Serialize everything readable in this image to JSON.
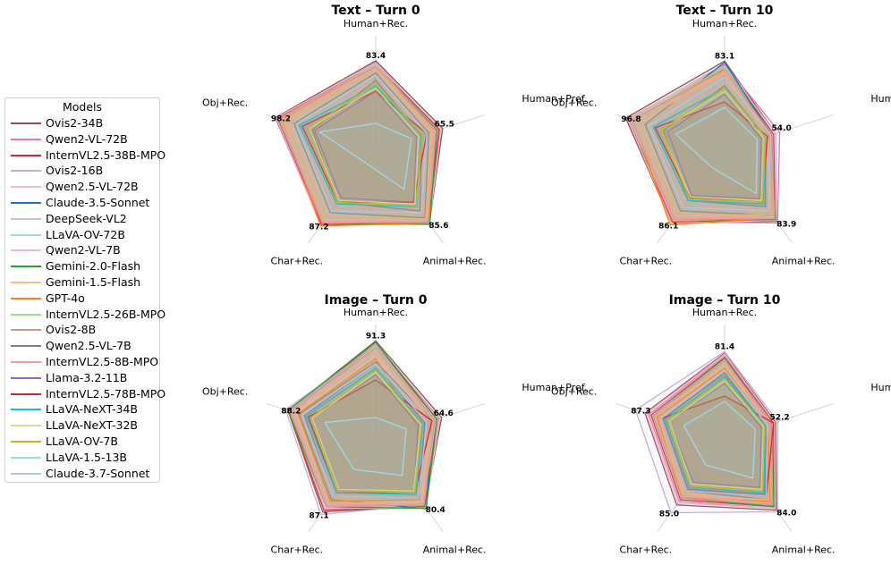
{
  "legend": {
    "title": "Models",
    "models": [
      {
        "name": "Ovis2-34B",
        "color": "#8c564b"
      },
      {
        "name": "Qwen2-VL-72B",
        "color": "#e377c2"
      },
      {
        "name": "InternVL2.5-38B-MPO",
        "color": "#d62728"
      },
      {
        "name": "Ovis2-16B",
        "color": "#c5b0d5"
      },
      {
        "name": "Qwen2.5-VL-72B",
        "color": "#f7b6d2"
      },
      {
        "name": "Claude-3.5-Sonnet",
        "color": "#1f77b4"
      },
      {
        "name": "DeepSeek-VL2",
        "color": "#c7c7c7"
      },
      {
        "name": "LLaVA-OV-72B",
        "color": "#9edae5"
      },
      {
        "name": "Qwen2-VL-7B",
        "color": "#f7b6d2"
      },
      {
        "name": "Gemini-2.0-Flash",
        "color": "#2ca02c"
      },
      {
        "name": "Gemini-1.5-Flash",
        "color": "#ffbb78"
      },
      {
        "name": "GPT-4o",
        "color": "#ff7f0e"
      },
      {
        "name": "InternVL2.5-26B-MPO",
        "color": "#98df8a"
      },
      {
        "name": "Ovis2-8B",
        "color": "#c49c94"
      },
      {
        "name": "Qwen2.5-VL-7B",
        "color": "#7f7f7f"
      },
      {
        "name": "InternVL2.5-8B-MPO",
        "color": "#ff9896"
      },
      {
        "name": "Llama-3.2-11B",
        "color": "#9467bd"
      },
      {
        "name": "InternVL2.5-78B-MPO",
        "color": "#d62728"
      },
      {
        "name": "LLaVA-NeXT-34B",
        "color": "#17becf"
      },
      {
        "name": "LLaVA-NeXT-32B",
        "color": "#dbdb8d"
      },
      {
        "name": "LLaVA-OV-7B",
        "color": "#bcbd22"
      },
      {
        "name": "LLaVA-1.5-13B",
        "color": "#9edae5"
      },
      {
        "name": "Claude-3.7-Sonnet",
        "color": "#aec7e8"
      }
    ]
  },
  "chart_data": [
    {
      "type": "radar",
      "title": "Text – Turn 0",
      "axes": [
        "Human+Rec.",
        "Human+Pref.",
        "Animal+Rec.",
        "Char+Rec.",
        "Obj+Rec."
      ],
      "rmax": 100,
      "max_labels": [
        "83.4",
        "65.5",
        "85.6",
        "87.2",
        "98.2"
      ],
      "series": [
        {
          "name": "Ovis2-34B",
          "values": [
            83.4,
            65.5,
            85.0,
            86.5,
            98.2
          ]
        },
        {
          "name": "Qwen2-VL-72B",
          "values": [
            82.0,
            63.0,
            84.0,
            85.0,
            96.0
          ]
        },
        {
          "name": "InternVL2.5-38B-MPO",
          "values": [
            80.5,
            62.0,
            84.0,
            86.0,
            97.0
          ]
        },
        {
          "name": "Ovis2-16B",
          "values": [
            80.0,
            60.0,
            82.0,
            84.0,
            94.0
          ]
        },
        {
          "name": "Qwen2.5-VL-72B",
          "values": [
            81.0,
            64.0,
            85.0,
            87.0,
            97.5
          ]
        },
        {
          "name": "Claude-3.5-Sonnet",
          "values": [
            72.0,
            52.0,
            78.0,
            72.0,
            80.0
          ]
        },
        {
          "name": "DeepSeek-VL2",
          "values": [
            75.0,
            55.0,
            80.0,
            78.0,
            88.0
          ]
        },
        {
          "name": "LLaVA-OV-72B",
          "values": [
            78.0,
            58.0,
            82.0,
            82.0,
            92.0
          ]
        },
        {
          "name": "Qwen2-VL-7B",
          "values": [
            77.0,
            57.0,
            80.0,
            80.0,
            90.0
          ]
        },
        {
          "name": "Gemini-2.0-Flash",
          "values": [
            79.0,
            60.0,
            85.6,
            84.0,
            93.0
          ]
        },
        {
          "name": "Gemini-1.5-Flash",
          "values": [
            76.0,
            55.0,
            79.0,
            80.0,
            90.0
          ]
        },
        {
          "name": "GPT-4o",
          "values": [
            78.0,
            58.0,
            84.0,
            87.2,
            92.0
          ]
        },
        {
          "name": "InternVL2.5-26B-MPO",
          "values": [
            79.0,
            59.0,
            82.0,
            84.0,
            94.0
          ]
        },
        {
          "name": "Ovis2-8B",
          "values": [
            78.0,
            59.0,
            83.0,
            84.0,
            95.0
          ]
        },
        {
          "name": "Qwen2.5-VL-7B",
          "values": [
            65.0,
            45.0,
            70.0,
            60.0,
            62.0
          ]
        },
        {
          "name": "InternVL2.5-8B-MPO",
          "values": [
            77.0,
            58.0,
            82.0,
            83.0,
            93.0
          ]
        },
        {
          "name": "Llama-3.2-11B",
          "values": [
            55.0,
            40.0,
            60.0,
            55.0,
            60.0
          ]
        },
        {
          "name": "InternVL2.5-78B-MPO",
          "values": [
            55.0,
            50.0,
            60.0,
            60.0,
            72.0
          ]
        },
        {
          "name": "LLaVA-NeXT-34B",
          "values": [
            60.0,
            45.0,
            65.0,
            62.0,
            75.0
          ]
        },
        {
          "name": "LLaVA-NeXT-32B",
          "values": [
            58.0,
            42.0,
            62.0,
            58.0,
            65.0
          ]
        },
        {
          "name": "LLaVA-OV-7B",
          "values": [
            62.0,
            46.0,
            64.0,
            60.0,
            66.0
          ]
        },
        {
          "name": "LLaVA-1.5-13B",
          "values": [
            25.0,
            35.0,
            45.0,
            15.0,
            55.0
          ]
        },
        {
          "name": "Claude-3.7-Sonnet",
          "values": [
            70.0,
            50.0,
            72.0,
            70.0,
            78.0
          ]
        }
      ]
    },
    {
      "type": "radar",
      "title": "Text – Turn 10",
      "axes": [
        "Human+Rec.",
        "Human+Pref.",
        "Animal+Rec.",
        "Char+Rec.",
        "Obj+Rec."
      ],
      "rmax": 100,
      "max_labels": [
        "83.1",
        "54.0",
        "83.9",
        "86.1",
        "96.8"
      ],
      "series": [
        {
          "name": "Ovis2-34B",
          "values": [
            83.1,
            50.0,
            82.0,
            84.0,
            96.8
          ]
        },
        {
          "name": "Qwen2-VL-72B",
          "values": [
            80.0,
            54.0,
            83.9,
            82.0,
            94.0
          ]
        },
        {
          "name": "InternVL2.5-38B-MPO",
          "values": [
            79.0,
            48.0,
            80.0,
            83.0,
            95.0
          ]
        },
        {
          "name": "Ovis2-16B",
          "values": [
            78.0,
            47.0,
            79.0,
            80.0,
            92.0
          ]
        },
        {
          "name": "Qwen2.5-VL-72B",
          "values": [
            79.0,
            50.0,
            81.0,
            84.0,
            95.0
          ]
        },
        {
          "name": "Claude-3.5-Sonnet",
          "values": [
            82.0,
            46.0,
            75.0,
            70.0,
            78.0
          ]
        },
        {
          "name": "DeepSeek-VL2",
          "values": [
            72.0,
            44.0,
            76.0,
            74.0,
            85.0
          ]
        },
        {
          "name": "LLaVA-OV-72B",
          "values": [
            76.0,
            46.0,
            78.0,
            78.0,
            88.0
          ]
        },
        {
          "name": "Qwen2-VL-7B",
          "values": [
            74.0,
            45.0,
            76.0,
            77.0,
            86.0
          ]
        },
        {
          "name": "Gemini-2.0-Flash",
          "values": [
            77.0,
            46.0,
            80.0,
            80.0,
            90.0
          ]
        },
        {
          "name": "Gemini-1.5-Flash",
          "values": [
            72.0,
            42.0,
            74.0,
            76.0,
            86.0
          ]
        },
        {
          "name": "GPT-4o",
          "values": [
            76.0,
            44.0,
            78.0,
            86.1,
            90.0
          ]
        },
        {
          "name": "InternVL2.5-26B-MPO",
          "values": [
            77.0,
            45.0,
            78.0,
            80.0,
            92.0
          ]
        },
        {
          "name": "Ovis2-8B",
          "values": [
            75.0,
            46.0,
            79.0,
            80.0,
            91.0
          ]
        },
        {
          "name": "Qwen2.5-VL-7B",
          "values": [
            60.0,
            40.0,
            65.0,
            58.0,
            60.0
          ]
        },
        {
          "name": "InternVL2.5-8B-MPO",
          "values": [
            74.0,
            45.0,
            78.0,
            79.0,
            90.0
          ]
        },
        {
          "name": "Llama-3.2-11B",
          "values": [
            52.0,
            36.0,
            56.0,
            52.0,
            56.0
          ]
        },
        {
          "name": "InternVL2.5-78B-MPO",
          "values": [
            45.0,
            42.0,
            60.0,
            55.0,
            68.0
          ]
        },
        {
          "name": "LLaVA-NeXT-34B",
          "values": [
            58.0,
            40.0,
            62.0,
            58.0,
            70.0
          ]
        },
        {
          "name": "LLaVA-NeXT-32B",
          "values": [
            55.0,
            38.0,
            58.0,
            54.0,
            62.0
          ]
        },
        {
          "name": "LLaVA-OV-7B",
          "values": [
            58.0,
            40.0,
            60.0,
            56.0,
            62.0
          ]
        },
        {
          "name": "LLaVA-1.5-13B",
          "values": [
            40.0,
            32.0,
            50.0,
            20.0,
            48.0
          ]
        },
        {
          "name": "Claude-3.7-Sonnet",
          "values": [
            68.0,
            45.0,
            70.0,
            66.0,
            74.0
          ]
        }
      ]
    },
    {
      "type": "radar",
      "title": "Image – Turn 0",
      "axes": [
        "Human+Rec.",
        "Human+Pref.",
        "Animal+Rec.",
        "Char+Rec.",
        "Obj+Rec."
      ],
      "rmax": 100,
      "max_labels": [
        "91.3",
        "64.6",
        "80.4",
        "87.1",
        "88.2"
      ],
      "series": [
        {
          "name": "Ovis2-34B",
          "values": [
            91.3,
            64.6,
            78.0,
            84.0,
            86.0
          ]
        },
        {
          "name": "Qwen2-VL-72B",
          "values": [
            89.0,
            62.0,
            79.0,
            80.0,
            84.0
          ]
        },
        {
          "name": "InternVL2.5-38B-MPO",
          "values": [
            88.0,
            60.0,
            78.0,
            82.0,
            86.0
          ]
        },
        {
          "name": "Ovis2-16B",
          "values": [
            88.0,
            58.0,
            76.0,
            87.1,
            88.2
          ]
        },
        {
          "name": "Qwen2.5-VL-72B",
          "values": [
            89.0,
            63.0,
            79.0,
            80.0,
            85.0
          ]
        },
        {
          "name": "Claude-3.5-Sonnet",
          "values": [
            72.0,
            55.0,
            80.4,
            70.0,
            75.0
          ]
        },
        {
          "name": "DeepSeek-VL2",
          "values": [
            80.0,
            56.0,
            74.0,
            74.0,
            80.0
          ]
        },
        {
          "name": "LLaVA-OV-72B",
          "values": [
            84.0,
            58.0,
            76.0,
            76.0,
            82.0
          ]
        },
        {
          "name": "Qwen2-VL-7B",
          "values": [
            82.0,
            57.0,
            74.0,
            75.0,
            80.0
          ]
        },
        {
          "name": "Gemini-2.0-Flash",
          "values": [
            90.0,
            60.0,
            80.0,
            78.0,
            86.0
          ]
        },
        {
          "name": "Gemini-1.5-Flash",
          "values": [
            78.0,
            54.0,
            72.0,
            72.0,
            78.0
          ]
        },
        {
          "name": "GPT-4o",
          "values": [
            75.0,
            40.0,
            70.0,
            72.0,
            76.0
          ]
        },
        {
          "name": "InternVL2.5-26B-MPO",
          "values": [
            86.0,
            58.0,
            76.0,
            78.0,
            84.0
          ]
        },
        {
          "name": "Ovis2-8B",
          "values": [
            85.0,
            58.0,
            76.0,
            78.0,
            84.0
          ]
        },
        {
          "name": "Qwen2.5-VL-7B",
          "values": [
            70.0,
            48.0,
            68.0,
            66.0,
            70.0
          ]
        },
        {
          "name": "InternVL2.5-8B-MPO",
          "values": [
            84.0,
            57.0,
            75.0,
            76.0,
            82.0
          ]
        },
        {
          "name": "Llama-3.2-11B",
          "values": [
            60.0,
            42.0,
            60.0,
            58.0,
            62.0
          ]
        },
        {
          "name": "InternVL2.5-78B-MPO",
          "values": [
            55.0,
            55.0,
            62.0,
            62.0,
            66.0
          ]
        },
        {
          "name": "LLaVA-NeXT-34B",
          "values": [
            66.0,
            46.0,
            64.0,
            62.0,
            68.0
          ]
        },
        {
          "name": "LLaVA-NeXT-32B",
          "values": [
            62.0,
            44.0,
            60.0,
            58.0,
            62.0
          ]
        },
        {
          "name": "LLaVA-OV-7B",
          "values": [
            64.0,
            45.0,
            62.0,
            60.0,
            64.0
          ]
        },
        {
          "name": "LLaVA-1.5-13B",
          "values": [
            20.0,
            30.0,
            42.0,
            35.0,
            50.0
          ]
        },
        {
          "name": "Claude-3.7-Sonnet",
          "values": [
            70.0,
            50.0,
            68.0,
            66.0,
            72.0
          ]
        }
      ]
    },
    {
      "type": "radar",
      "title": "Image – Turn 10",
      "axes": [
        "Human+Rec.",
        "Human+Pref.",
        "Animal+Rec.",
        "Char+Rec.",
        "Obj+Rec."
      ],
      "rmax": 100,
      "max_labels": [
        "81.4",
        "52.2",
        "84.0",
        "85.0",
        "87.3"
      ],
      "series": [
        {
          "name": "Ovis2-34B",
          "values": [
            80.0,
            50.0,
            82.0,
            76.0,
            78.0
          ]
        },
        {
          "name": "Qwen2-VL-72B",
          "values": [
            78.0,
            48.0,
            80.0,
            72.0,
            74.0
          ]
        },
        {
          "name": "InternVL2.5-38B-MPO",
          "values": [
            76.0,
            48.0,
            78.0,
            70.0,
            72.0
          ]
        },
        {
          "name": "Ovis2-16B",
          "values": [
            81.4,
            52.2,
            84.0,
            85.0,
            87.3
          ]
        },
        {
          "name": "Qwen2.5-VL-72B",
          "values": [
            79.0,
            49.0,
            80.0,
            74.0,
            76.0
          ]
        },
        {
          "name": "Claude-3.5-Sonnet",
          "values": [
            60.0,
            40.0,
            70.0,
            60.0,
            62.0
          ]
        },
        {
          "name": "DeepSeek-VL2",
          "values": [
            70.0,
            44.0,
            72.0,
            66.0,
            68.0
          ]
        },
        {
          "name": "LLaVA-OV-72B",
          "values": [
            74.0,
            46.0,
            76.0,
            68.0,
            70.0
          ]
        },
        {
          "name": "Qwen2-VL-7B",
          "values": [
            72.0,
            45.0,
            74.0,
            66.0,
            68.0
          ]
        },
        {
          "name": "Gemini-2.0-Flash",
          "values": [
            75.0,
            46.0,
            78.0,
            68.0,
            70.0
          ]
        },
        {
          "name": "Gemini-1.5-Flash",
          "values": [
            68.0,
            42.0,
            70.0,
            64.0,
            66.0
          ]
        },
        {
          "name": "GPT-4o",
          "values": [
            66.0,
            42.0,
            72.0,
            68.0,
            66.0
          ]
        },
        {
          "name": "InternVL2.5-26B-MPO",
          "values": [
            74.0,
            46.0,
            76.0,
            68.0,
            70.0
          ]
        },
        {
          "name": "Ovis2-8B",
          "values": [
            73.0,
            46.0,
            76.0,
            68.0,
            70.0
          ]
        },
        {
          "name": "Qwen2.5-VL-7B",
          "values": [
            62.0,
            40.0,
            64.0,
            58.0,
            60.0
          ]
        },
        {
          "name": "InternVL2.5-8B-MPO",
          "values": [
            72.0,
            45.0,
            74.0,
            66.0,
            68.0
          ]
        },
        {
          "name": "Llama-3.2-11B",
          "values": [
            52.0,
            36.0,
            56.0,
            50.0,
            54.0
          ]
        },
        {
          "name": "InternVL2.5-78B-MPO",
          "values": [
            40.0,
            48.0,
            66.0,
            60.0,
            62.0
          ]
        },
        {
          "name": "LLaVA-NeXT-34B",
          "values": [
            58.0,
            40.0,
            62.0,
            56.0,
            58.0
          ]
        },
        {
          "name": "LLaVA-NeXT-32B",
          "values": [
            54.0,
            38.0,
            58.0,
            52.0,
            54.0
          ]
        },
        {
          "name": "LLaVA-OV-7B",
          "values": [
            56.0,
            39.0,
            60.0,
            54.0,
            56.0
          ]
        },
        {
          "name": "LLaVA-1.5-13B",
          "values": [
            35.0,
            30.0,
            45.0,
            30.0,
            40.0
          ]
        },
        {
          "name": "Claude-3.7-Sonnet",
          "values": [
            64.0,
            42.0,
            66.0,
            60.0,
            62.0
          ]
        }
      ]
    }
  ]
}
